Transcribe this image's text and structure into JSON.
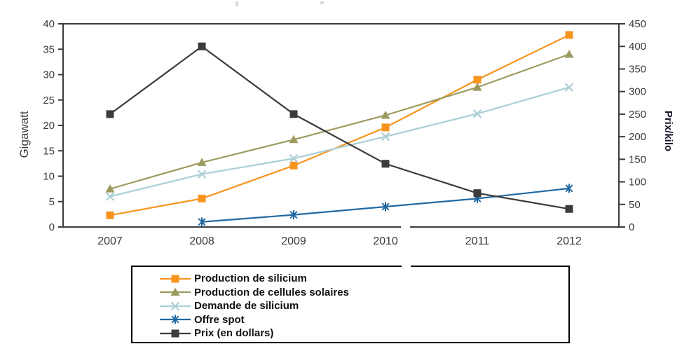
{
  "chart_data": {
    "type": "line",
    "title": "",
    "x_categories": [
      "2007",
      "2008",
      "2009",
      "2010",
      "2011",
      "2012"
    ],
    "left_axis": {
      "label": "Gigawatt",
      "min": 0,
      "max": 40,
      "step": 5
    },
    "right_axis": {
      "label": "Prix/kilo",
      "min": 0,
      "max": 450,
      "step": 50
    },
    "grid": false,
    "legend_position": "bottom",
    "series": [
      {
        "name": "Production de silicium",
        "axis": "left",
        "color": "#F7941E",
        "marker": "square",
        "values": [
          2.3,
          5.6,
          12.1,
          19.6,
          29,
          37.8
        ]
      },
      {
        "name": "Production de cellules solaires",
        "axis": "left",
        "color": "#9C9A5F",
        "marker": "triangle",
        "values": [
          7.5,
          12.7,
          17.2,
          22,
          27.5,
          34
        ]
      },
      {
        "name": "Demande de silicium",
        "axis": "left",
        "color": "#ABCFD5",
        "marker": "x",
        "values": [
          6,
          10.4,
          13.5,
          17.8,
          22.3,
          27.5
        ]
      },
      {
        "name": "Offre spot",
        "axis": "left",
        "color": "#2169A3",
        "marker": "asterisk",
        "values": [
          null,
          1,
          2.4,
          4,
          5.6,
          7.6
        ]
      },
      {
        "name": "Prix (en dollars)",
        "axis": "right",
        "color": "#3B3B3B",
        "marker": "square",
        "values": [
          250,
          400,
          250,
          140,
          75,
          40
        ]
      }
    ]
  }
}
